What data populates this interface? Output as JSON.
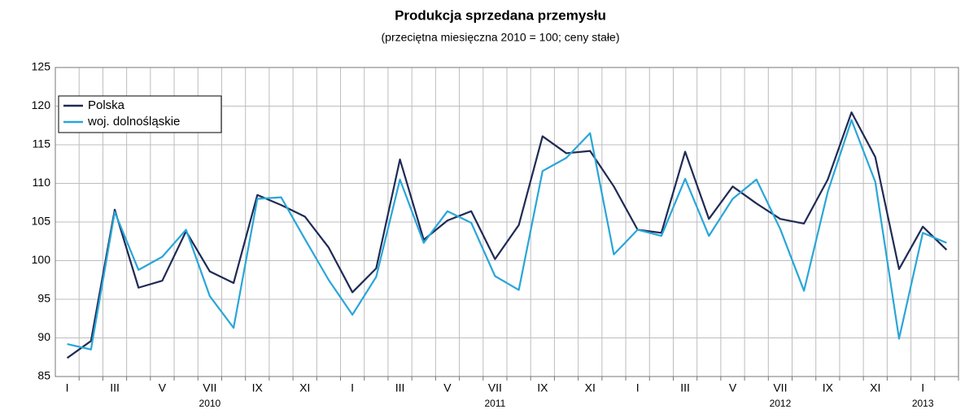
{
  "chart_data": {
    "type": "line",
    "title": "Produkcja sprzedana przemysłu",
    "subtitle": "(przeciętna miesięczna 2010 = 100; ceny stałe)",
    "categories": [
      "I",
      null,
      "III",
      null,
      "V",
      null,
      "VII",
      null,
      "IX",
      null,
      "XI",
      null,
      "I",
      null,
      "III",
      null,
      "V",
      null,
      "VII",
      null,
      "IX",
      null,
      "XI",
      null,
      "I",
      null,
      "III",
      null,
      "V",
      null,
      "VII",
      null,
      "IX",
      null,
      "XI",
      null,
      "I",
      null
    ],
    "years": [
      "2010",
      "2011",
      "2012",
      "2013"
    ],
    "series": [
      {
        "name": "Polska",
        "color": "#1f2a55",
        "values": [
          87.4,
          89.6,
          106.6,
          96.5,
          97.4,
          103.8,
          98.6,
          97.1,
          108.5,
          107.2,
          105.7,
          101.7,
          95.9,
          99.0,
          113.1,
          102.7,
          105.2,
          106.4,
          100.2,
          104.6,
          116.1,
          113.9,
          114.2,
          109.6,
          104.0,
          103.6,
          114.1,
          105.4,
          109.6,
          107.4,
          105.4,
          104.8,
          110.5,
          119.2,
          113.4,
          98.9,
          104.4,
          101.4
        ]
      },
      {
        "name": "woj. dolnośląskie",
        "color": "#29a6d8",
        "values": [
          89.2,
          88.5,
          106.3,
          98.8,
          100.5,
          104.0,
          95.4,
          91.3,
          108.0,
          108.2,
          102.8,
          97.5,
          93.0,
          97.9,
          110.5,
          102.3,
          106.4,
          104.9,
          98.0,
          96.2,
          111.6,
          113.3,
          116.5,
          100.8,
          104.0,
          103.2,
          110.6,
          103.2,
          108.0,
          110.5,
          104.1,
          96.1,
          108.9,
          118.2,
          110.2,
          89.9,
          103.6,
          102.3
        ]
      }
    ],
    "ylim": [
      85,
      125
    ],
    "yticks": [
      85,
      90,
      95,
      100,
      105,
      110,
      115,
      120,
      125
    ],
    "grid": true,
    "legend": "upper left"
  }
}
